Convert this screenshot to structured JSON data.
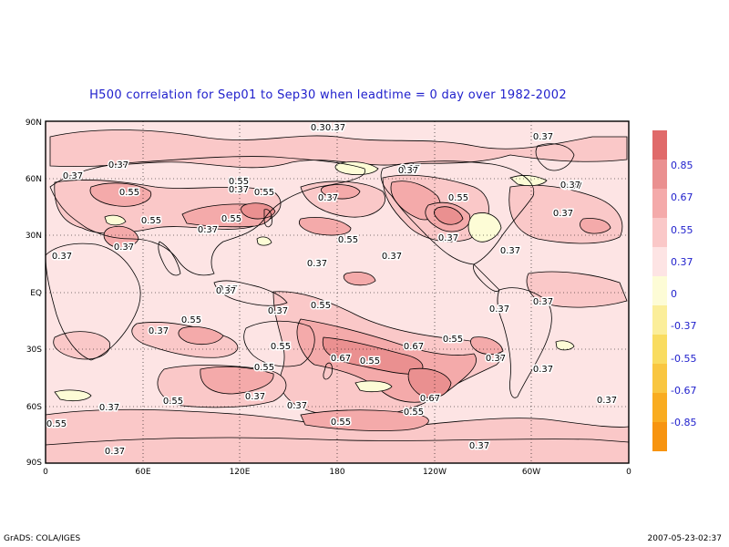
{
  "title": "H500 correlation for  Sep01 to Sep30  when leadtime =  0 day over 1982-2002",
  "footer": {
    "left": "GrADS: COLA/IGES",
    "right": "2007-05-23-02:37"
  },
  "lat_labels": [
    "90N",
    "60N",
    "30N",
    "EQ",
    "30S",
    "60S",
    "90S"
  ],
  "lon_labels": [
    "0",
    "60E",
    "120E",
    "180",
    "120W",
    "60W",
    "0"
  ],
  "colorbar": {
    "colors": [
      "#e06a6a",
      "#ea9090",
      "#f4aaaa",
      "#fac8c8",
      "#fde4e4",
      "#fdfcd6",
      "#fbee9a",
      "#f9dc60",
      "#f9c640",
      "#f9ac20",
      "#f79410"
    ],
    "labels": [
      "0.85",
      "0.67",
      "0.55",
      "0.37",
      "0",
      "-0.37",
      "-0.55",
      "-0.67",
      "-0.85"
    ]
  },
  "contour_labels": [
    "0.37",
    "0.37",
    "0.37",
    "0.37",
    "0.37",
    "0.37",
    "0.37",
    "0.37",
    "0.55",
    "0.55",
    "0.37",
    "0.55",
    "0.55",
    "0.37",
    "0.55",
    "0.37",
    "0.37",
    "0.37",
    "0.37",
    "0.55",
    "0.37",
    "0.37",
    "0.55",
    "0.37",
    "0.55",
    "0.37",
    "0.37",
    "0.55",
    "0.55",
    "0.37",
    "0.55",
    "0.55",
    "0.37",
    "0.37",
    "0.55",
    "0.67",
    "0.55",
    "0.67",
    "0.37",
    "0.37",
    "0.55",
    "0.55",
    "0.37",
    "0.37",
    "0.67",
    "0.37",
    "0.37",
    "0.55",
    "0.37",
    "0.37",
    "0.37",
    "0.37",
    "0.37"
  ],
  "colors": {
    "title": "#1e1ecc",
    "frame": "#000000"
  }
}
